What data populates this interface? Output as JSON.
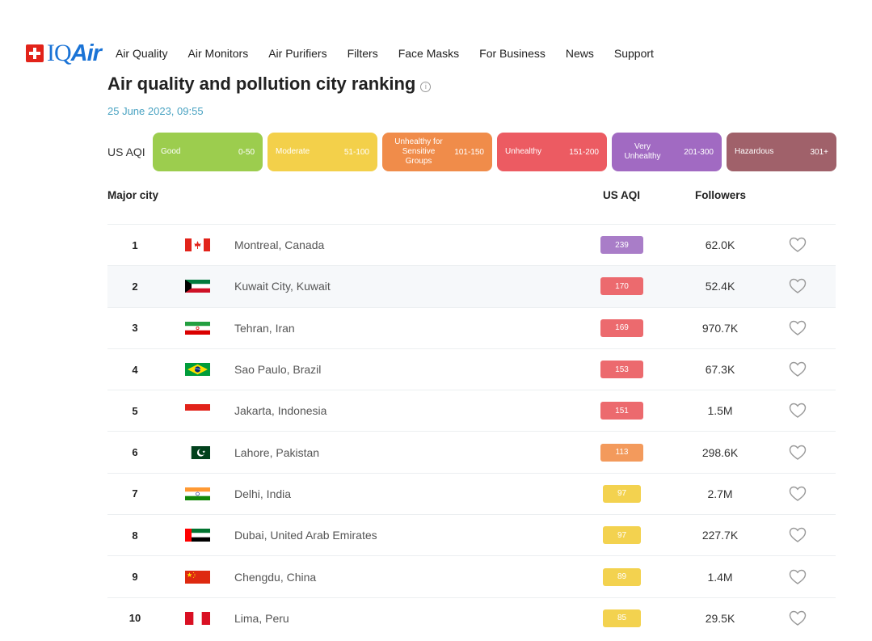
{
  "header": {
    "logo_iq": "IQ",
    "logo_air": "Air",
    "nav": [
      {
        "label": "Air Quality"
      },
      {
        "label": "Air Monitors"
      },
      {
        "label": "Air Purifiers"
      },
      {
        "label": "Filters"
      },
      {
        "label": "Face Masks"
      },
      {
        "label": "For Business"
      },
      {
        "label": "News"
      },
      {
        "label": "Support"
      }
    ]
  },
  "page": {
    "title": "Air quality and pollution city ranking",
    "timestamp": "25 June 2023, 09:55"
  },
  "legend": {
    "label": "US AQI",
    "items": [
      {
        "name": "Good",
        "range": "0-50",
        "color": "#9ccd4e"
      },
      {
        "name": "Moderate",
        "range": "51-100",
        "color": "#f3d04a"
      },
      {
        "name": "Unhealthy for Sensitive Groups",
        "range": "101-150",
        "color": "#f08c4a"
      },
      {
        "name": "Unhealthy",
        "range": "151-200",
        "color": "#ec5b62"
      },
      {
        "name": "Very Unhealthy",
        "range": "201-300",
        "color": "#a16ac2"
      },
      {
        "name": "Hazardous",
        "range": "301+",
        "color": "#a0616a"
      }
    ]
  },
  "table": {
    "headers": {
      "city": "Major city",
      "aqi": "US AQI",
      "followers": "Followers"
    },
    "rows": [
      {
        "rank": "1",
        "country_flag": "canada-flag",
        "city": "Montreal, Canada",
        "aqi": "239",
        "aqi_color": "#a97dc8",
        "followers": "62.0K"
      },
      {
        "rank": "2",
        "country_flag": "kuwait-flag",
        "city": "Kuwait City, Kuwait",
        "aqi": "170",
        "aqi_color": "#ec6a6e",
        "followers": "52.4K"
      },
      {
        "rank": "3",
        "country_flag": "iran-flag",
        "city": "Tehran, Iran",
        "aqi": "169",
        "aqi_color": "#ec6a6e",
        "followers": "970.7K"
      },
      {
        "rank": "4",
        "country_flag": "brazil-flag",
        "city": "Sao Paulo, Brazil",
        "aqi": "153",
        "aqi_color": "#ec6a6e",
        "followers": "67.3K"
      },
      {
        "rank": "5",
        "country_flag": "indonesia-flag",
        "city": "Jakarta, Indonesia",
        "aqi": "151",
        "aqi_color": "#ec6a6e",
        "followers": "1.5M"
      },
      {
        "rank": "6",
        "country_flag": "pakistan-flag",
        "city": "Lahore, Pakistan",
        "aqi": "113",
        "aqi_color": "#f39a5c",
        "followers": "298.6K"
      },
      {
        "rank": "7",
        "country_flag": "india-flag",
        "city": "Delhi, India",
        "aqi": "97",
        "aqi_color": "#f3d24f",
        "followers": "2.7M"
      },
      {
        "rank": "8",
        "country_flag": "uae-flag",
        "city": "Dubai, United Arab Emirates",
        "aqi": "97",
        "aqi_color": "#f3d24f",
        "followers": "227.7K"
      },
      {
        "rank": "9",
        "country_flag": "china-flag",
        "city": "Chengdu, China",
        "aqi": "89",
        "aqi_color": "#f3d24f",
        "followers": "1.4M"
      },
      {
        "rank": "10",
        "country_flag": "peru-flag",
        "city": "Lima, Peru",
        "aqi": "85",
        "aqi_color": "#f3d24f",
        "followers": "29.5K"
      }
    ]
  }
}
